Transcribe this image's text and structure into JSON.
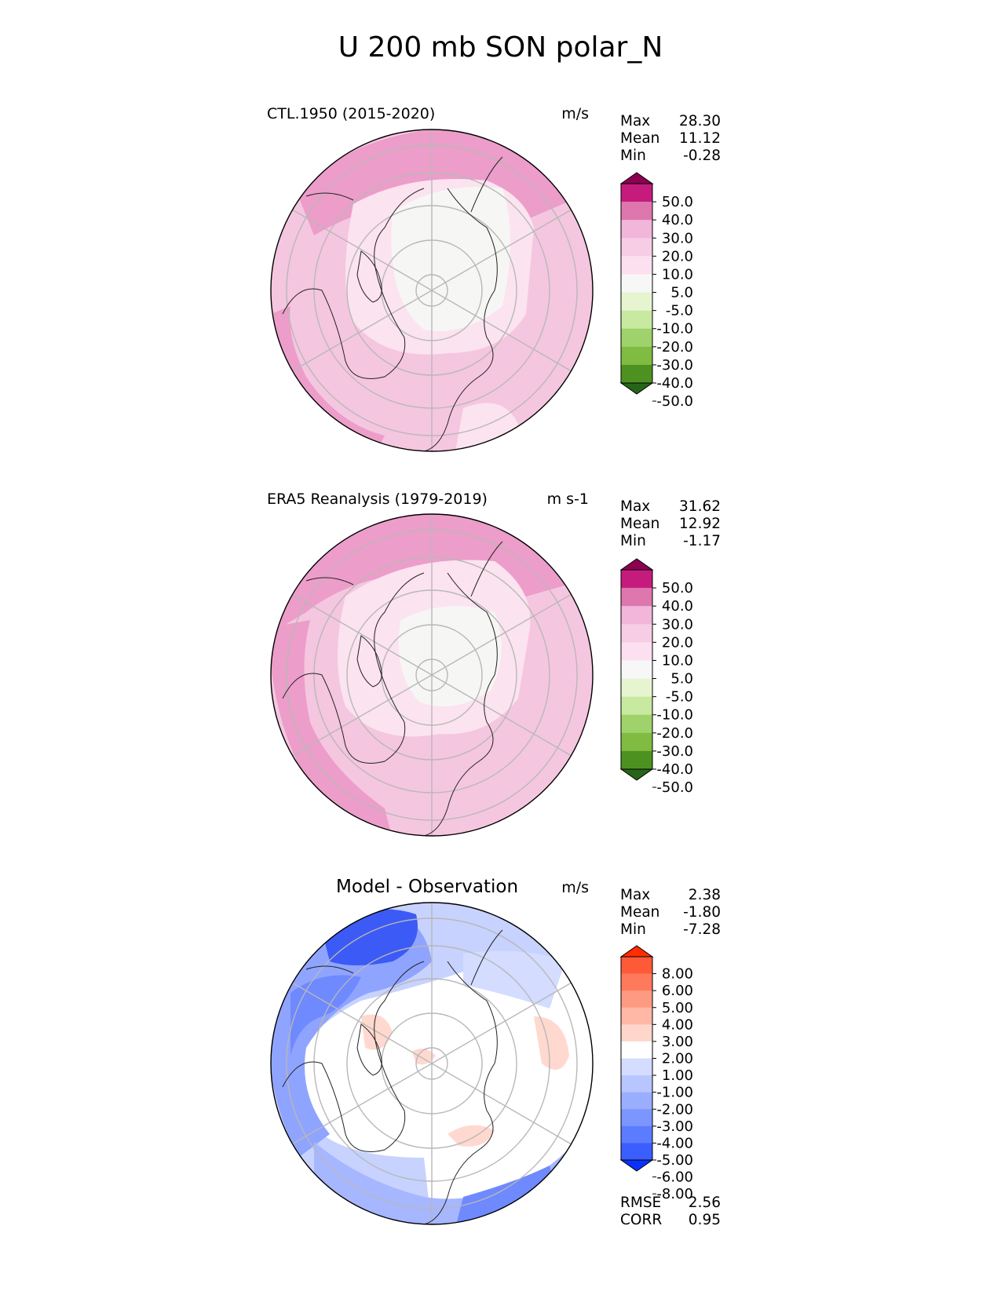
{
  "figure": {
    "title": "U 200 mb SON polar_N"
  },
  "panels": [
    {
      "title": "CTL.1950 (2015-2020)",
      "units": "m/s",
      "stats": [
        {
          "label": "Max",
          "value": "28.30"
        },
        {
          "label": "Mean",
          "value": "11.12"
        },
        {
          "label": "Min",
          "value": "-0.28"
        }
      ],
      "colorbar": {
        "ticks": [
          "50.0",
          "40.0",
          "30.0",
          "20.0",
          "10.0",
          "5.0",
          "-5.0",
          "-10.0",
          "-20.0",
          "-30.0",
          "-40.0",
          "-50.0"
        ],
        "colors": [
          "#8e0152",
          "#c51b7d",
          "#de77ae",
          "#f1b6da",
          "#f7cde6",
          "#fde0ef",
          "#f7f7f7",
          "#e6f5d0",
          "#c7e9a0",
          "#9fd26a",
          "#7fbc41",
          "#4d9221",
          "#276419"
        ]
      }
    },
    {
      "title": "ERA5 Reanalysis (1979-2019)",
      "units": "m s-1",
      "stats": [
        {
          "label": "Max",
          "value": "31.62"
        },
        {
          "label": "Mean",
          "value": "12.92"
        },
        {
          "label": "Min",
          "value": "-1.17"
        }
      ],
      "colorbar": {
        "ticks": [
          "50.0",
          "40.0",
          "30.0",
          "20.0",
          "10.0",
          "5.0",
          "-5.0",
          "-10.0",
          "-20.0",
          "-30.0",
          "-40.0",
          "-50.0"
        ],
        "colors": [
          "#8e0152",
          "#c51b7d",
          "#de77ae",
          "#f1b6da",
          "#f7cde6",
          "#fde0ef",
          "#f7f7f7",
          "#e6f5d0",
          "#c7e9a0",
          "#9fd26a",
          "#7fbc41",
          "#4d9221",
          "#276419"
        ]
      }
    },
    {
      "title": "Model - Observation",
      "units": "m/s",
      "stats": [
        {
          "label": "Max",
          "value": "2.38"
        },
        {
          "label": "Mean",
          "value": "-1.80"
        },
        {
          "label": "Min",
          "value": "-7.28"
        }
      ],
      "extra_stats": [
        {
          "label": "RMSE",
          "value": "2.56"
        },
        {
          "label": "CORR",
          "value": "0.95"
        }
      ],
      "colorbar": {
        "ticks": [
          "8.00",
          "6.00",
          "5.00",
          "4.00",
          "3.00",
          "2.00",
          "1.00",
          "-1.00",
          "-2.00",
          "-3.00",
          "-4.00",
          "-5.00",
          "-6.00",
          "-8.00"
        ],
        "colors": [
          "#ff2d00",
          "#ff5a37",
          "#ff7a5c",
          "#ff9a82",
          "#ffb8a6",
          "#ffd6cb",
          "#ffffff",
          "#d4dcff",
          "#b8c6ff",
          "#9aaeff",
          "#7c96ff",
          "#5c7cff",
          "#3a5eff",
          "#0a32ff"
        ]
      }
    }
  ],
  "chart_data": {
    "type": "heatmap",
    "title": "U 200 mb SON polar_N",
    "projection": "north polar stereographic",
    "panels": [
      {
        "name": "CTL.1950 (2015-2020)",
        "units": "m/s",
        "max": 28.3,
        "mean": 11.12,
        "min": -0.28,
        "levels": [
          -50,
          -40,
          -30,
          -20,
          -10,
          -5,
          5,
          10,
          20,
          30,
          40,
          50
        ]
      },
      {
        "name": "ERA5 Reanalysis (1979-2019)",
        "units": "m s-1",
        "max": 31.62,
        "mean": 12.92,
        "min": -1.17,
        "levels": [
          -50,
          -40,
          -30,
          -20,
          -10,
          -5,
          5,
          10,
          20,
          30,
          40,
          50
        ]
      },
      {
        "name": "Model - Observation",
        "units": "m/s",
        "max": 2.38,
        "mean": -1.8,
        "min": -7.28,
        "rmse": 2.56,
        "corr": 0.95,
        "levels": [
          -8,
          -6,
          -5,
          -4,
          -3,
          -2,
          -1,
          1,
          2,
          3,
          4,
          5,
          6,
          8
        ]
      }
    ]
  }
}
